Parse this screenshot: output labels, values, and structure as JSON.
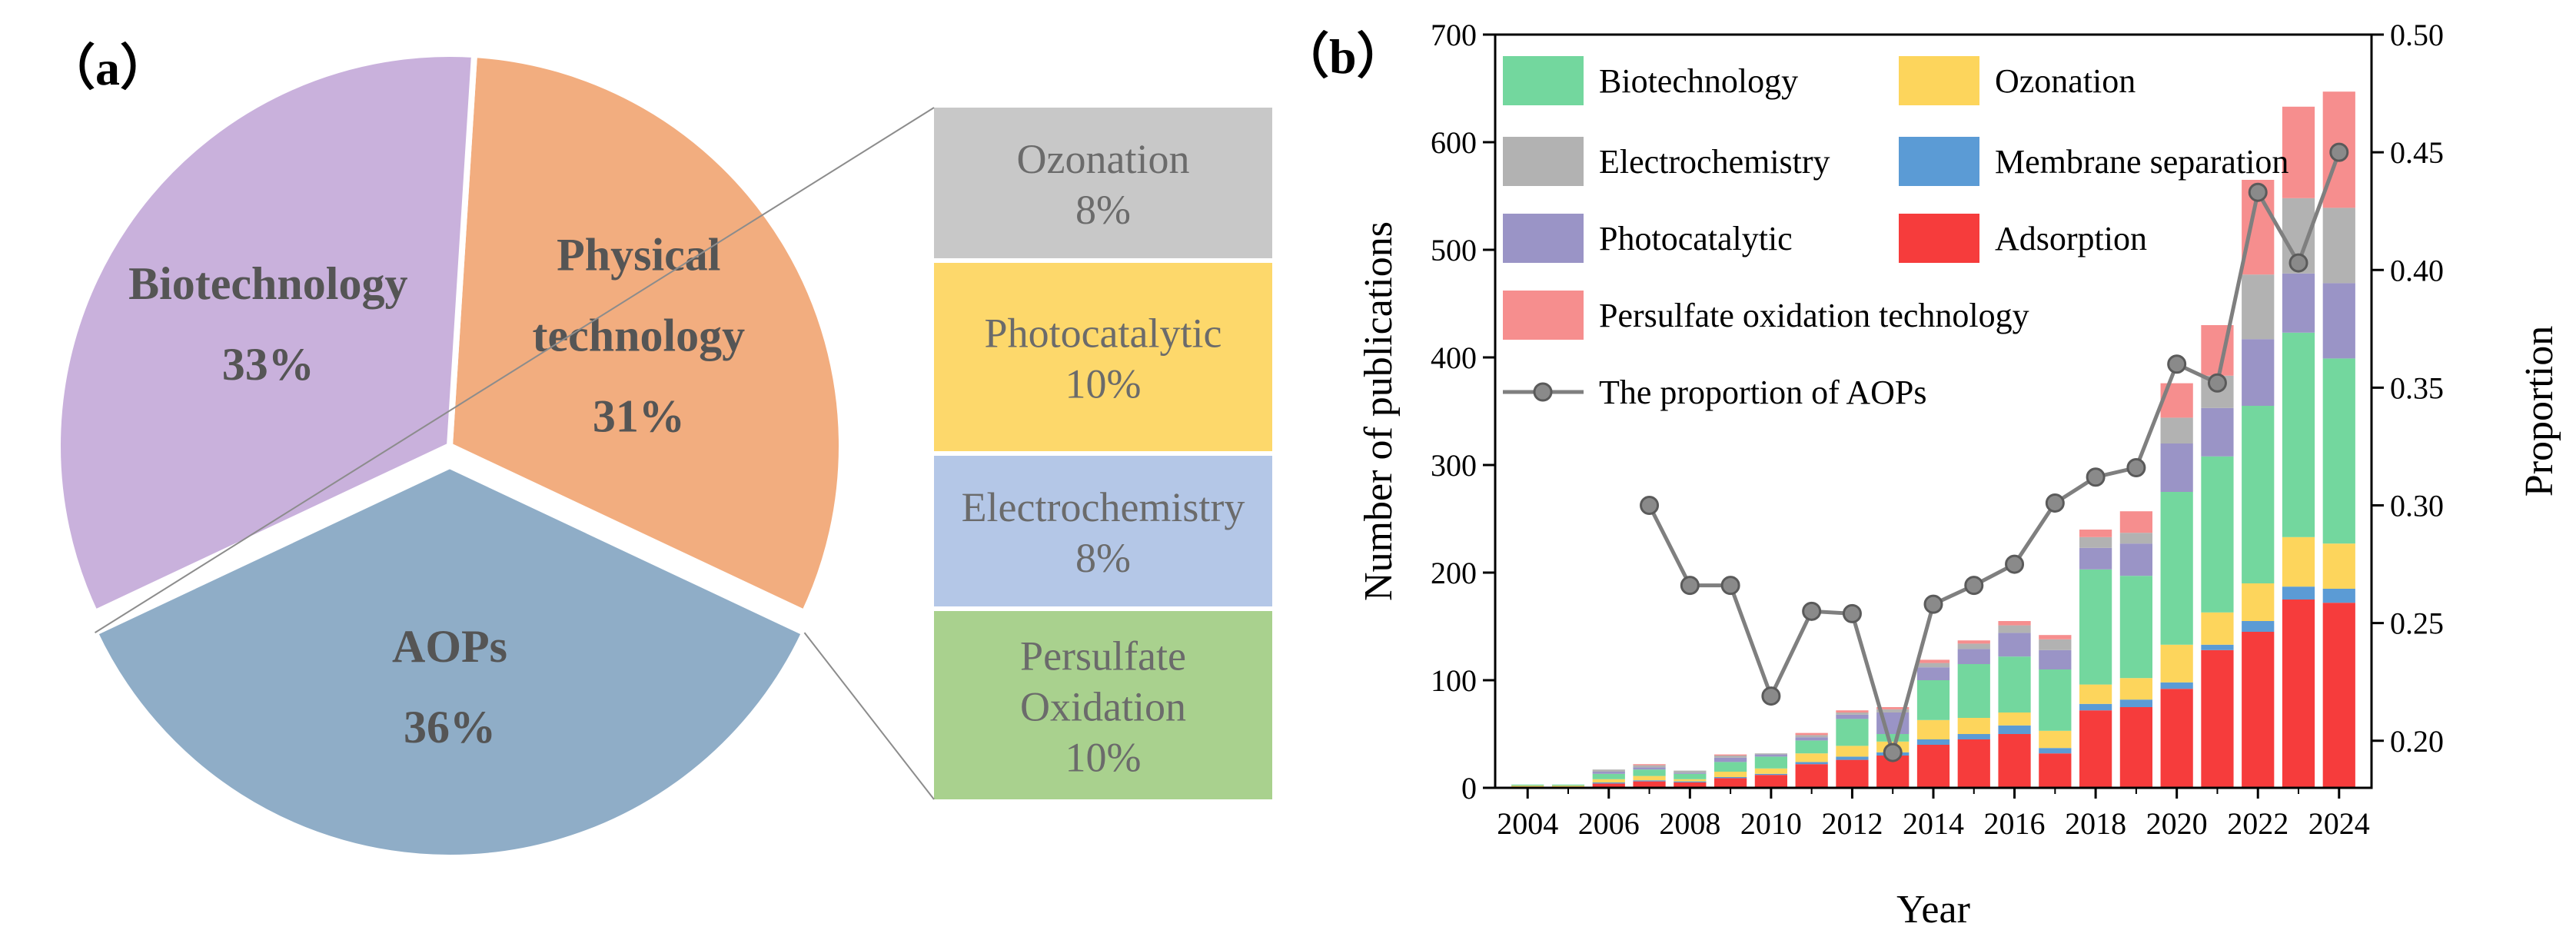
{
  "panel_a_label": "（a）",
  "panel_b_label": "（b）",
  "colors": {
    "biotechnology": "#73d79e",
    "electrochemistry": "#b2b2b2",
    "photocatalytic": "#9a94c6",
    "persulfate": "#f68e8e",
    "ozonation": "#fdd55c",
    "membrane": "#5b9bd5",
    "adsorption": "#f63c3c",
    "line": "#7f7f7f",
    "pie_physical": "#f2ad7f",
    "pie_aops": "#8fadc7",
    "pie_biotech": "#c9b1dc",
    "box_ozonation": "#c8c8c8",
    "box_photocatalytic": "#fdd86b",
    "box_electrochemistry": "#b4c7e7",
    "box_persulfate": "#a9d18e",
    "pie_text": "#555555"
  },
  "chart_data": [
    {
      "type": "pie",
      "slices": [
        {
          "label_lines": [
            "Physical",
            "technology"
          ],
          "pct_label": "31%",
          "value": 31,
          "color_key": "pie_physical"
        },
        {
          "label_lines": [
            "AOPs"
          ],
          "pct_label": "36%",
          "value": 36,
          "color_key": "pie_aops"
        },
        {
          "label_lines": [
            "Biotechnology"
          ],
          "pct_label": "33%",
          "value": 33,
          "color_key": "pie_biotech"
        }
      ],
      "breakdown_of": "AOPs",
      "breakdown": [
        {
          "label_lines": [
            "Ozonation"
          ],
          "pct_label": "8%",
          "value": 8,
          "color_key": "box_ozonation"
        },
        {
          "label_lines": [
            "Photocatalytic"
          ],
          "pct_label": "10%",
          "value": 10,
          "color_key": "box_photocatalytic"
        },
        {
          "label_lines": [
            "Electrochemistry"
          ],
          "pct_label": "8%",
          "value": 8,
          "color_key": "box_electrochemistry"
        },
        {
          "label_lines": [
            "Persulfate",
            "Oxidation"
          ],
          "pct_label": "10%",
          "value": 10,
          "color_key": "box_persulfate"
        }
      ]
    },
    {
      "type": "bar",
      "stacked": true,
      "xlabel": "Year",
      "ylabel": "Number of publications",
      "y2label": "Proportion",
      "ylim": [
        0,
        700
      ],
      "yticks": [
        0,
        100,
        200,
        300,
        400,
        500,
        600,
        700
      ],
      "y2lim": [
        0.18,
        0.5
      ],
      "y2ticks": [
        0.2,
        0.25,
        0.3,
        0.35,
        0.4,
        0.45,
        0.5
      ],
      "xticks": [
        "2004",
        "2006",
        "2008",
        "2010",
        "2012",
        "2014",
        "2016",
        "2018",
        "2020",
        "2022",
        "2024"
      ],
      "categories": [
        "2004",
        "2005",
        "2006",
        "2007",
        "2008",
        "2009",
        "2010",
        "2011",
        "2012",
        "2013",
        "2014",
        "2015",
        "2016",
        "2017",
        "2018",
        "2019",
        "2020",
        "2021",
        "2022",
        "2023",
        "2024"
      ],
      "series": [
        {
          "name": "Adsorption",
          "color_key": "adsorption",
          "values": [
            1,
            1,
            4,
            6,
            5,
            9,
            12,
            22,
            26,
            30,
            40,
            45,
            50,
            32,
            72,
            75,
            92,
            128,
            145,
            175,
            172
          ]
        },
        {
          "name": "Membrane separation",
          "color_key": "membrane",
          "values": [
            0,
            0,
            1,
            1,
            1,
            1,
            1,
            2,
            3,
            3,
            5,
            5,
            8,
            5,
            6,
            7,
            6,
            5,
            10,
            12,
            13
          ]
        },
        {
          "name": "Ozonation",
          "color_key": "ozonation",
          "values": [
            1,
            1,
            3,
            4,
            2,
            5,
            5,
            8,
            10,
            10,
            18,
            15,
            12,
            16,
            18,
            20,
            35,
            30,
            35,
            46,
            42
          ]
        },
        {
          "name": "Biotechnology",
          "color_key": "biotechnology",
          "values": [
            1,
            1,
            5,
            6,
            5,
            9,
            11,
            12,
            25,
            7,
            37,
            50,
            52,
            57,
            107,
            95,
            142,
            145,
            165,
            190,
            172
          ]
        },
        {
          "name": "Photocatalytic",
          "color_key": "photocatalytic",
          "values": [
            0,
            0,
            2,
            2,
            1,
            4,
            2,
            3,
            4,
            20,
            12,
            14,
            22,
            18,
            20,
            30,
            45,
            45,
            62,
            55,
            70
          ]
        },
        {
          "name": "Electrochemistry",
          "color_key": "electrochemistry",
          "values": [
            0,
            0,
            2,
            2,
            2,
            2,
            1,
            2,
            2,
            3,
            4,
            5,
            7,
            10,
            10,
            10,
            24,
            30,
            60,
            70,
            70
          ]
        },
        {
          "name": "Persulfate oxidation technology",
          "color_key": "persulfate",
          "values": [
            0,
            0,
            0,
            1,
            0,
            1,
            0,
            2,
            2,
            2,
            3,
            3,
            4,
            4,
            7,
            20,
            32,
            47,
            88,
            85,
            108
          ]
        }
      ],
      "line": {
        "name": "The proportion of AOPs",
        "color_key": "line",
        "points": [
          {
            "year": "2007",
            "value": 0.3
          },
          {
            "year": "2008",
            "value": 0.266
          },
          {
            "year": "2009",
            "value": 0.266
          },
          {
            "year": "2010",
            "value": 0.219
          },
          {
            "year": "2011",
            "value": 0.255
          },
          {
            "year": "2012",
            "value": 0.254
          },
          {
            "year": "2013",
            "value": 0.195
          },
          {
            "year": "2014",
            "value": 0.258
          },
          {
            "year": "2015",
            "value": 0.266
          },
          {
            "year": "2016",
            "value": 0.275
          },
          {
            "year": "2017",
            "value": 0.301
          },
          {
            "year": "2018",
            "value": 0.312
          },
          {
            "year": "2019",
            "value": 0.316
          },
          {
            "year": "2020",
            "value": 0.36
          },
          {
            "year": "2021",
            "value": 0.352
          },
          {
            "year": "2022",
            "value": 0.433
          },
          {
            "year": "2023",
            "value": 0.403
          },
          {
            "year": "2024",
            "value": 0.45
          }
        ]
      },
      "legend": [
        {
          "name": "Biotechnology",
          "color_key": "biotechnology",
          "kind": "box"
        },
        {
          "name": "Ozonation",
          "color_key": "ozonation",
          "kind": "box"
        },
        {
          "name": "Electrochemistry",
          "color_key": "electrochemistry",
          "kind": "box"
        },
        {
          "name": "Membrane separation",
          "color_key": "membrane",
          "kind": "box"
        },
        {
          "name": "Photocatalytic",
          "color_key": "photocatalytic",
          "kind": "box"
        },
        {
          "name": "Adsorption",
          "color_key": "adsorption",
          "kind": "box"
        },
        {
          "name": "Persulfate oxidation technology",
          "color_key": "persulfate",
          "kind": "box"
        },
        {
          "name": "The proportion of AOPs",
          "color_key": "line",
          "kind": "line"
        }
      ]
    }
  ]
}
